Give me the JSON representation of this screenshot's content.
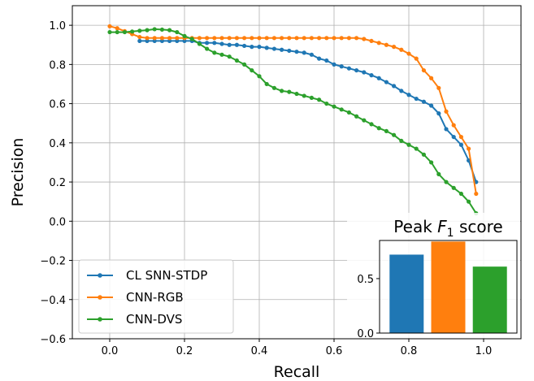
{
  "chart_data": [
    {
      "type": "line",
      "xlabel": "Recall",
      "ylabel": "Precision",
      "xlim": [
        -0.1,
        1.1
      ],
      "ylim": [
        -0.6,
        1.1
      ],
      "xticks": [
        0.0,
        0.2,
        0.4,
        0.6,
        0.8,
        1.0
      ],
      "xtick_labels": [
        "0.0",
        "0.2",
        "0.4",
        "0.6",
        "0.8",
        "1.0"
      ],
      "yticks": [
        -0.6,
        -0.4,
        -0.2,
        0.0,
        0.2,
        0.4,
        0.6,
        0.8,
        1.0
      ],
      "ytick_labels": [
        "−0.6",
        "−0.4",
        "−0.2",
        "0.0",
        "0.2",
        "0.4",
        "0.6",
        "0.8",
        "1.0"
      ],
      "grid": true,
      "legend_position": "lower-left",
      "series": [
        {
          "name": "CL SNN-STDP",
          "color": "#1f77b4",
          "x": [
            0.08,
            0.1,
            0.12,
            0.14,
            0.16,
            0.18,
            0.2,
            0.22,
            0.24,
            0.26,
            0.28,
            0.3,
            0.32,
            0.34,
            0.36,
            0.38,
            0.4,
            0.42,
            0.44,
            0.46,
            0.48,
            0.5,
            0.52,
            0.54,
            0.56,
            0.58,
            0.6,
            0.62,
            0.64,
            0.66,
            0.68,
            0.7,
            0.72,
            0.74,
            0.76,
            0.78,
            0.8,
            0.82,
            0.84,
            0.86,
            0.88,
            0.9,
            0.92,
            0.94,
            0.96,
            0.98
          ],
          "y": [
            0.92,
            0.92,
            0.92,
            0.92,
            0.92,
            0.92,
            0.92,
            0.92,
            0.91,
            0.91,
            0.91,
            0.905,
            0.9,
            0.9,
            0.895,
            0.89,
            0.89,
            0.885,
            0.88,
            0.875,
            0.87,
            0.865,
            0.86,
            0.85,
            0.83,
            0.82,
            0.8,
            0.79,
            0.78,
            0.77,
            0.76,
            0.745,
            0.73,
            0.71,
            0.69,
            0.665,
            0.645,
            0.625,
            0.61,
            0.59,
            0.55,
            0.47,
            0.43,
            0.39,
            0.31,
            0.2
          ]
        },
        {
          "name": "CNN-RGB",
          "color": "#ff7f0e",
          "x": [
            0.0,
            0.02,
            0.04,
            0.06,
            0.08,
            0.1,
            0.12,
            0.14,
            0.16,
            0.18,
            0.2,
            0.22,
            0.24,
            0.26,
            0.28,
            0.3,
            0.32,
            0.34,
            0.36,
            0.38,
            0.4,
            0.42,
            0.44,
            0.46,
            0.48,
            0.5,
            0.52,
            0.54,
            0.56,
            0.58,
            0.6,
            0.62,
            0.64,
            0.66,
            0.68,
            0.7,
            0.72,
            0.74,
            0.76,
            0.78,
            0.8,
            0.82,
            0.84,
            0.86,
            0.88,
            0.9,
            0.92,
            0.94,
            0.96,
            0.98
          ],
          "y": [
            0.995,
            0.985,
            0.97,
            0.955,
            0.94,
            0.935,
            0.935,
            0.935,
            0.935,
            0.935,
            0.935,
            0.935,
            0.935,
            0.935,
            0.935,
            0.935,
            0.935,
            0.935,
            0.935,
            0.935,
            0.935,
            0.935,
            0.935,
            0.935,
            0.935,
            0.935,
            0.935,
            0.935,
            0.935,
            0.935,
            0.935,
            0.935,
            0.935,
            0.935,
            0.93,
            0.92,
            0.91,
            0.9,
            0.89,
            0.875,
            0.855,
            0.83,
            0.77,
            0.73,
            0.68,
            0.56,
            0.49,
            0.43,
            0.37,
            0.14
          ]
        },
        {
          "name": "CNN-DVS",
          "color": "#2ca02c",
          "x": [
            0.0,
            0.02,
            0.04,
            0.06,
            0.08,
            0.1,
            0.12,
            0.14,
            0.16,
            0.18,
            0.2,
            0.22,
            0.24,
            0.26,
            0.28,
            0.3,
            0.32,
            0.34,
            0.36,
            0.38,
            0.4,
            0.42,
            0.44,
            0.46,
            0.48,
            0.5,
            0.52,
            0.54,
            0.56,
            0.58,
            0.6,
            0.62,
            0.64,
            0.66,
            0.68,
            0.7,
            0.72,
            0.74,
            0.76,
            0.78,
            0.8,
            0.82,
            0.84,
            0.86,
            0.88,
            0.9,
            0.92,
            0.94,
            0.96,
            0.98
          ],
          "y": [
            0.965,
            0.965,
            0.965,
            0.968,
            0.972,
            0.975,
            0.98,
            0.978,
            0.975,
            0.965,
            0.945,
            0.93,
            0.905,
            0.88,
            0.86,
            0.85,
            0.84,
            0.82,
            0.8,
            0.77,
            0.74,
            0.7,
            0.68,
            0.665,
            0.66,
            0.65,
            0.64,
            0.63,
            0.62,
            0.6,
            0.585,
            0.57,
            0.555,
            0.535,
            0.515,
            0.495,
            0.475,
            0.46,
            0.44,
            0.41,
            0.39,
            0.37,
            0.34,
            0.3,
            0.24,
            0.2,
            0.17,
            0.14,
            0.1,
            0.04
          ]
        }
      ]
    },
    {
      "type": "bar",
      "title": "Peak F1 score",
      "title_prefix": "Peak ",
      "title_var": "F",
      "title_sub": "1",
      "title_suffix": " score",
      "categories": [
        "CL SNN-STDP",
        "CNN-RGB",
        "CNN-DVS"
      ],
      "values": [
        0.72,
        0.84,
        0.61
      ],
      "colors": [
        "#1f77b4",
        "#ff7f0e",
        "#2ca02c"
      ],
      "ylim": [
        0,
        0.85
      ],
      "yticks": [
        0.0,
        0.5
      ],
      "ytick_labels": [
        "0.0",
        "0.5"
      ]
    }
  ]
}
